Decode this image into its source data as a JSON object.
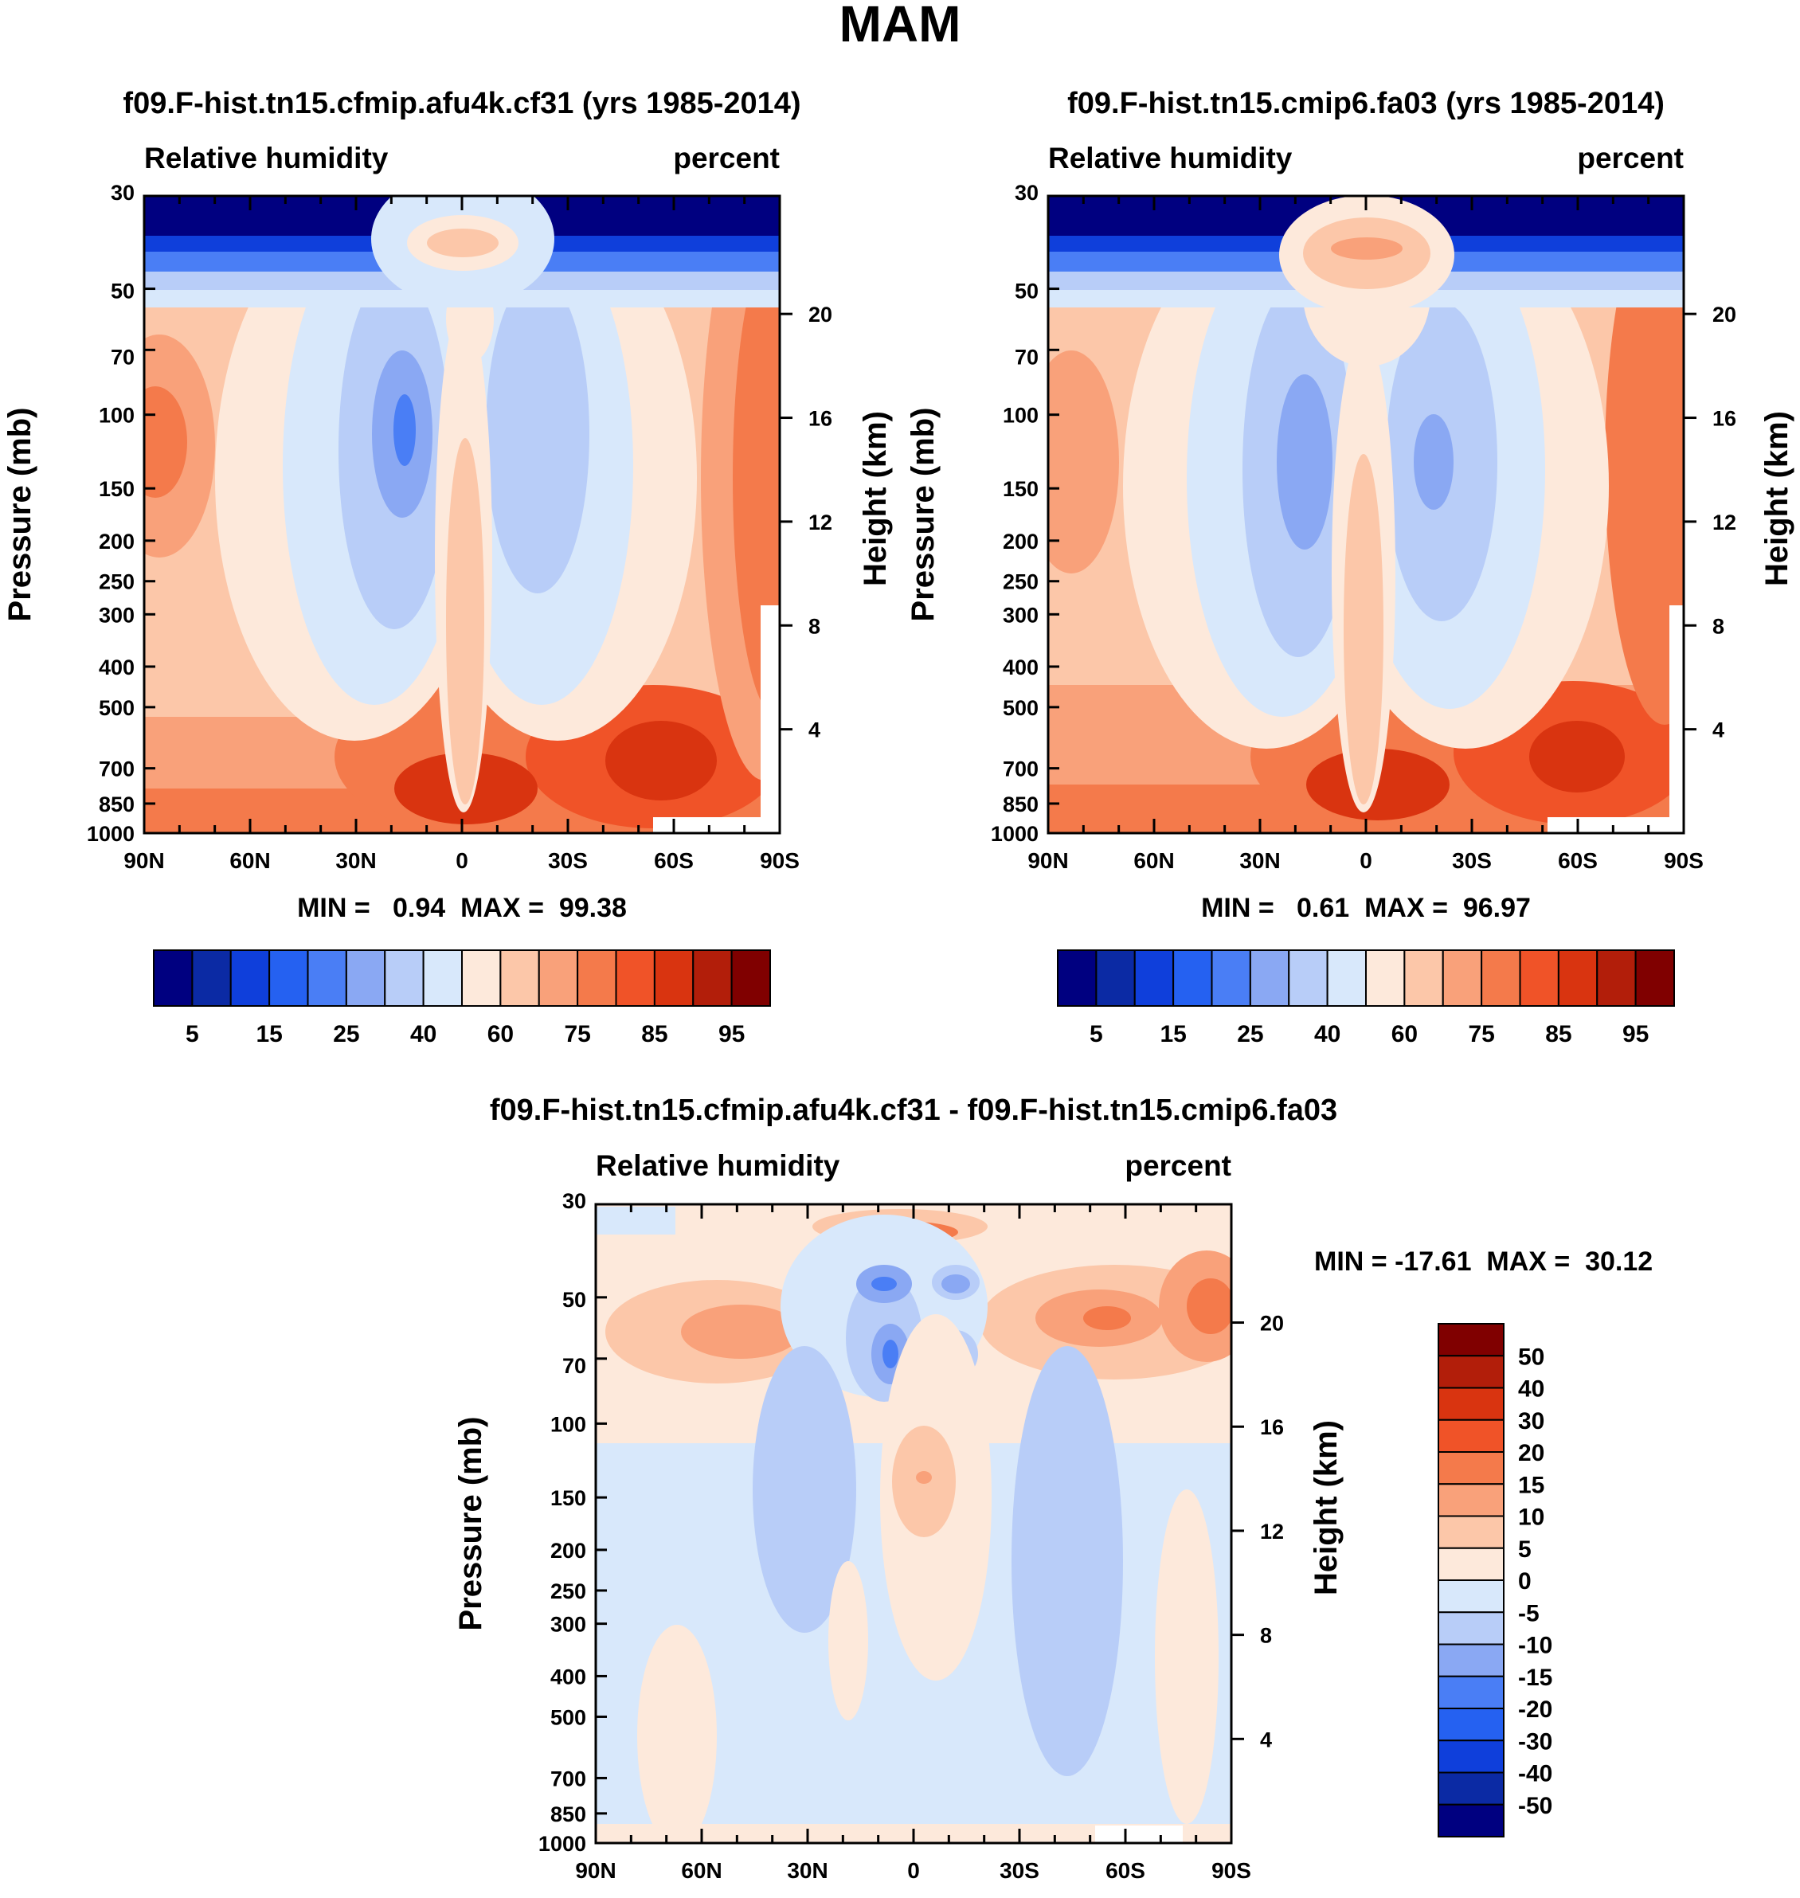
{
  "title": "MAM",
  "colors": {
    "full": [
      "#000080",
      "#0b2aa4",
      "#0f3fdb",
      "#2561f1",
      "#4a7ef5",
      "#8aa8f3",
      "#b8cdf8",
      "#d8e8fb",
      "#fde9db",
      "#fcc7a9",
      "#f9a17a",
      "#f47a4b",
      "#f05328",
      "#d93410",
      "#b21e0a",
      "#800000"
    ],
    "diff": [
      "#000080",
      "#0b2aa4",
      "#0f3fdb",
      "#2561f1",
      "#4a7ef5",
      "#8aa8f3",
      "#b8cdf8",
      "#d8e8fb",
      "#fde9db",
      "#fcc7a9",
      "#f9a17a",
      "#f47a4b",
      "#f05328",
      "#d93410",
      "#b21e0a",
      "#800000"
    ]
  },
  "chart_data": [
    {
      "type": "heatmap",
      "title": "f09.F-hist.tn15.cfmip.afu4k.cf31 (yrs 1985-2014)",
      "left_label": "Relative humidity",
      "right_label": "percent",
      "ylabel": "Pressure (mb)",
      "ylabel_right": "Height (km)",
      "stats": "MIN =   0.94  MAX =  99.38",
      "pressure_ticks": [
        "30",
        "50",
        "70",
        "100",
        "150",
        "200",
        "250",
        "300",
        "400",
        "500",
        "700",
        "850",
        "1000"
      ],
      "height_ticks": [
        "20",
        "16",
        "12",
        "8",
        "4"
      ],
      "lat_ticks": [
        "90N",
        "60N",
        "30N",
        "0",
        "30S",
        "60S",
        "90S"
      ],
      "colorbar_labels": [
        "5",
        "15",
        "25",
        "40",
        "60",
        "75",
        "85",
        "95"
      ],
      "contour_levels": [
        5,
        10,
        15,
        20,
        25,
        30,
        40,
        50,
        60,
        65,
        75,
        80,
        85,
        90,
        95
      ]
    },
    {
      "type": "heatmap",
      "title": "f09.F-hist.tn15.cmip6.fa03 (yrs 1985-2014)",
      "left_label": "Relative humidity",
      "right_label": "percent",
      "ylabel": "Pressure (mb)",
      "ylabel_right": "Height (km)",
      "stats": "MIN =   0.61  MAX =  96.97",
      "pressure_ticks": [
        "30",
        "50",
        "70",
        "100",
        "150",
        "200",
        "250",
        "300",
        "400",
        "500",
        "700",
        "850",
        "1000"
      ],
      "height_ticks": [
        "20",
        "16",
        "12",
        "8",
        "4"
      ],
      "lat_ticks": [
        "90N",
        "60N",
        "30N",
        "0",
        "30S",
        "60S",
        "90S"
      ],
      "colorbar_labels": [
        "5",
        "15",
        "25",
        "40",
        "60",
        "75",
        "85",
        "95"
      ],
      "contour_levels": [
        5,
        10,
        15,
        20,
        25,
        30,
        40,
        50,
        60,
        65,
        75,
        80,
        85,
        90,
        95
      ]
    },
    {
      "type": "heatmap",
      "title": "f09.F-hist.tn15.cfmip.afu4k.cf31 - f09.F-hist.tn15.cmip6.fa03",
      "left_label": "Relative humidity",
      "right_label": "percent",
      "ylabel": "Pressure (mb)",
      "ylabel_right": "Height (km)",
      "stats": "MIN = -17.61  MAX =  30.12",
      "pressure_ticks": [
        "30",
        "50",
        "70",
        "100",
        "150",
        "200",
        "250",
        "300",
        "400",
        "500",
        "700",
        "850",
        "1000"
      ],
      "height_ticks": [
        "20",
        "16",
        "12",
        "8",
        "4"
      ],
      "lat_ticks": [
        "90N",
        "60N",
        "30N",
        "0",
        "30S",
        "60S",
        "90S"
      ],
      "colorbar_labels": [
        "50",
        "40",
        "30",
        "20",
        "15",
        "10",
        "5",
        "0",
        "-5",
        "-10",
        "-15",
        "-20",
        "-30",
        "-40",
        "-50"
      ],
      "contour_levels": [
        -50,
        -40,
        -30,
        -20,
        -15,
        -10,
        -5,
        0,
        5,
        10,
        15,
        20,
        30,
        40,
        50
      ]
    }
  ]
}
